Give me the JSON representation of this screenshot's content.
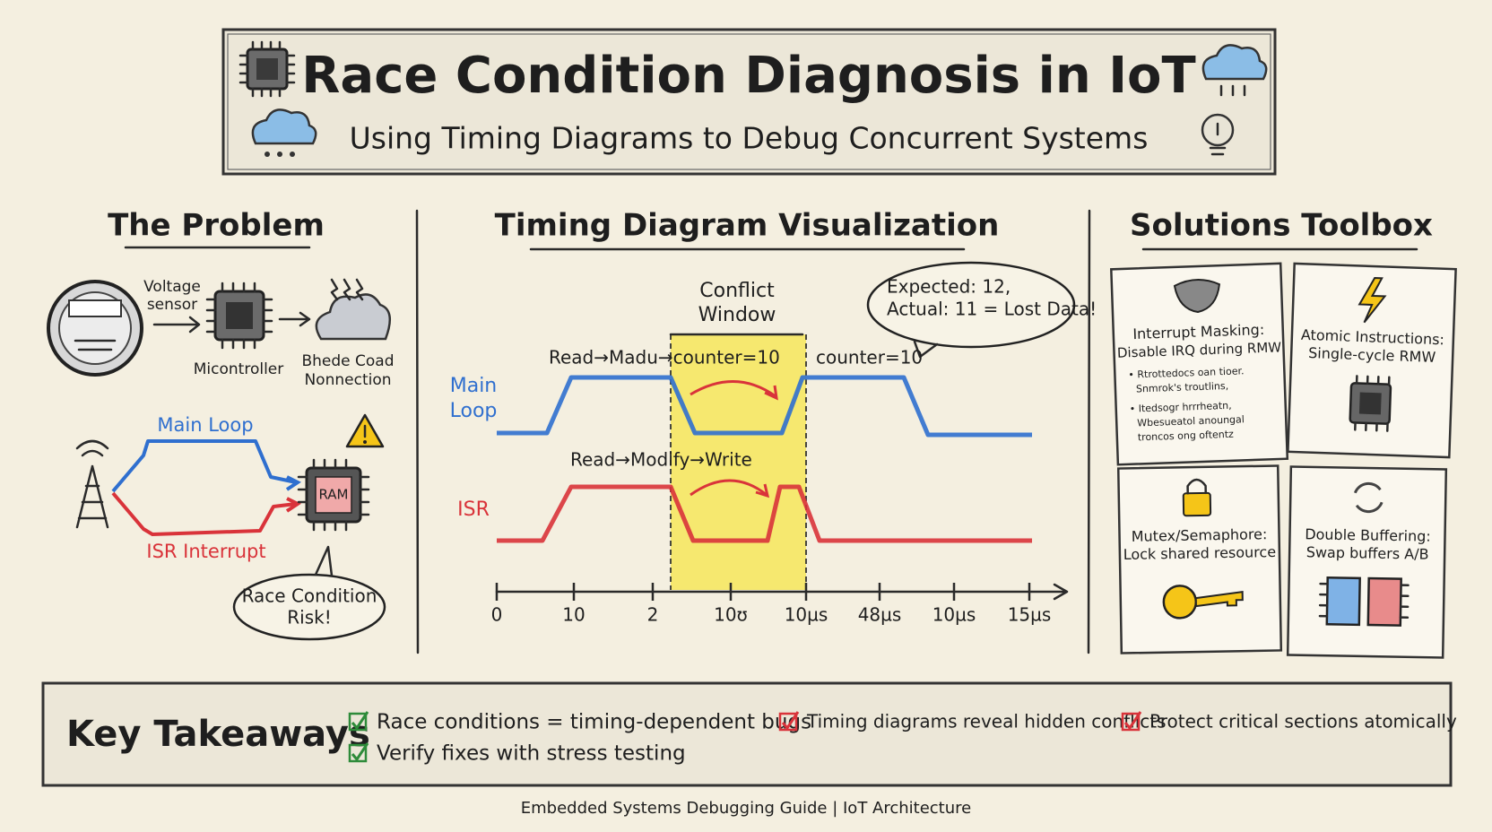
{
  "header": {
    "title": "Race Condition Diagnosis in IoT",
    "subtitle": "Using Timing Diagrams to Debug Concurrent Systems"
  },
  "problem": {
    "heading": "The Problem",
    "sensor_label": [
      "Voltage",
      "sensor"
    ],
    "controller_label": "Micontroller",
    "cloud_label": [
      "Bhede Coad",
      "Nonnection"
    ],
    "main_loop": "Main Loop",
    "isr": "ISR Interrupt",
    "ram": "RAM",
    "risk": [
      "Race Condition",
      "Risk!"
    ]
  },
  "timing": {
    "heading": "Timing Diagram Visualization",
    "conflict": [
      "Conflict",
      "Window"
    ],
    "callout": [
      "Expected: 12,",
      "Actual: 11 = Lost Data!"
    ],
    "main_label": [
      "Main",
      "Loop"
    ],
    "isr_label": "ISR",
    "main_annotation": "Read→Madu→counter=10",
    "main_annotation_2": "counter=10",
    "isr_annotation": "Read→Modify→Write",
    "axis_labels": [
      "0",
      "10",
      "2",
      "10ʊ",
      "10µs",
      "48µs",
      "10µs",
      "15µs"
    ]
  },
  "solutions": {
    "heading": "Solutions Toolbox",
    "cards": [
      {
        "title": [
          "Interrupt Masking:",
          "Disable IRQ during RMW"
        ],
        "bullets": [
          "• Rtrottedocs oan tioer.",
          "Snmrok's troutlins,",
          "• Itedsogr hrrrheatn,",
          "Wbesueatol anoungal",
          "troncos ong oftentz"
        ]
      },
      {
        "title": [
          "Atomic Instructions:",
          "Single-cycle RMW"
        ]
      },
      {
        "title": [
          "Mutex/Semaphore:",
          "Lock shared resource"
        ]
      },
      {
        "title": [
          "Double Buffering:",
          "Swap buffers A/B"
        ]
      }
    ]
  },
  "takeaways": {
    "heading": "Key Takeaways",
    "items": [
      "Race conditions = timing-dependent bugs",
      "Timing diagrams reveal hidden conflicts",
      "Protect critical sections atomically",
      "Verify fixes with stress testing"
    ]
  },
  "footer": "Embedded Systems Debugging Guide | IoT Architecture"
}
